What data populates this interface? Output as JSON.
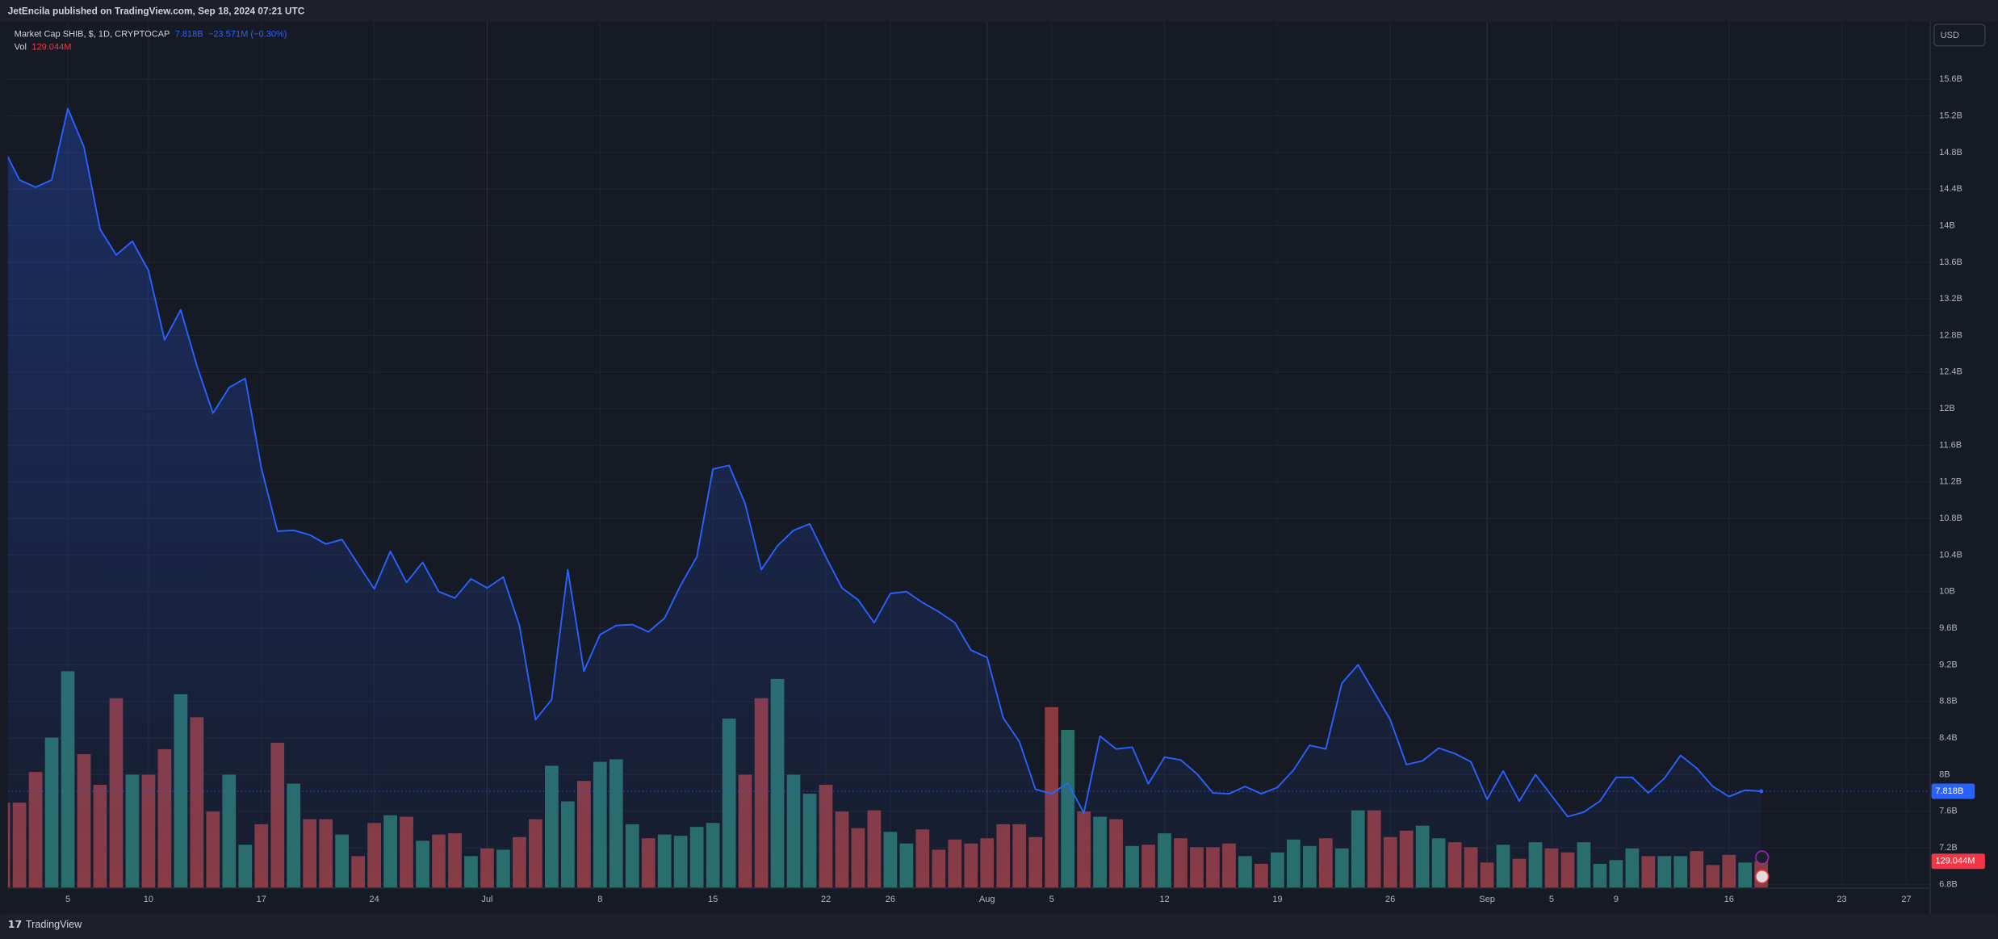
{
  "chart_data": {
    "type": "line",
    "header": "JetEncila published on TradingView.com, Sep 18, 2024 07:21 UTC",
    "currency": "USD",
    "footer": "TradingView",
    "categories": [
      "Jun 1",
      "Jun 2",
      "Jun 3",
      "Jun 4",
      "Jun 5",
      "Jun 6",
      "Jun 7",
      "Jun 8",
      "Jun 9",
      "Jun 10",
      "Jun 11",
      "Jun 12",
      "Jun 13",
      "Jun 14",
      "Jun 15",
      "Jun 16",
      "Jun 17",
      "Jun 18",
      "Jun 19",
      "Jun 20",
      "Jun 21",
      "Jun 22",
      "Jun 23",
      "Jun 24",
      "Jun 25",
      "Jun 26",
      "Jun 27",
      "Jun 28",
      "Jun 29",
      "Jun 30",
      "Jul 1",
      "Jul 2",
      "Jul 3",
      "Jul 4",
      "Jul 5",
      "Jul 6",
      "Jul 7",
      "Jul 8",
      "Jul 9",
      "Jul 10",
      "Jul 11",
      "Jul 12",
      "Jul 13",
      "Jul 14",
      "Jul 15",
      "Jul 16",
      "Jul 17",
      "Jul 18",
      "Jul 19",
      "Jul 20",
      "Jul 21",
      "Jul 22",
      "Jul 23",
      "Jul 24",
      "Jul 25",
      "Jul 26",
      "Jul 27",
      "Jul 28",
      "Jul 29",
      "Jul 30",
      "Jul 31",
      "Aug 1",
      "Aug 2",
      "Aug 3",
      "Aug 4",
      "Aug 5",
      "Aug 6",
      "Aug 7",
      "Aug 8",
      "Aug 9",
      "Aug 10",
      "Aug 11",
      "Aug 12",
      "Aug 13",
      "Aug 14",
      "Aug 15",
      "Aug 16",
      "Aug 17",
      "Aug 18",
      "Aug 19",
      "Aug 20",
      "Aug 21",
      "Aug 22",
      "Aug 23",
      "Aug 24",
      "Aug 25",
      "Aug 26",
      "Aug 27",
      "Aug 28",
      "Aug 29",
      "Aug 30",
      "Aug 31",
      "Sep 1",
      "Sep 2",
      "Sep 3",
      "Sep 4",
      "Sep 5",
      "Sep 6",
      "Sep 7",
      "Sep 8",
      "Sep 9",
      "Sep 10",
      "Sep 11",
      "Sep 12",
      "Sep 13",
      "Sep 14",
      "Sep 15",
      "Sep 16",
      "Sep 17",
      "Sep 18",
      "Sep 19",
      "Sep 20",
      "Sep 21",
      "Sep 22",
      "Sep 23",
      "Sep 24",
      "Sep 25",
      "Sep 26",
      "Sep 27"
    ],
    "series": [
      {
        "name": "Market Cap SHIB, $, 1D, CRYPTOCAP",
        "color": "#2962ff",
        "change_label": "−23.571M (−0.30%)",
        "values": [
          14.85,
          14.5,
          14.42,
          14.5,
          15.28,
          14.86,
          13.96,
          13.68,
          13.83,
          13.51,
          12.75,
          13.08,
          12.47,
          11.95,
          12.23,
          12.33,
          11.35,
          10.66,
          10.67,
          10.62,
          10.52,
          10.57,
          10.3,
          10.03,
          10.44,
          10.1,
          10.32,
          10.0,
          9.93,
          10.14,
          10.04,
          10.16,
          9.63,
          8.6,
          8.82,
          10.24,
          9.13,
          9.53,
          9.63,
          9.64,
          9.56,
          9.71,
          10.07,
          10.38,
          11.34,
          11.38,
          10.96,
          10.24,
          10.5,
          10.67,
          10.74,
          10.38,
          10.04,
          9.91,
          9.66,
          9.98,
          10.0,
          9.88,
          9.78,
          9.66,
          9.36,
          9.28,
          8.62,
          8.36,
          7.84,
          7.79,
          7.91,
          7.58,
          8.42,
          8.28,
          8.3,
          7.9,
          8.19,
          8.16,
          8.01,
          7.8,
          7.79,
          7.87,
          7.79,
          7.86,
          8.05,
          8.32,
          8.28,
          9.0,
          9.2,
          8.9,
          8.6,
          8.11,
          8.15,
          8.29,
          8.23,
          8.14,
          7.73,
          8.04,
          7.71,
          8.0,
          7.77,
          7.54,
          7.59,
          7.71,
          7.97,
          7.97,
          7.8,
          7.96,
          8.21,
          8.07,
          7.87,
          7.76,
          7.83,
          7.818,
          null,
          null,
          null,
          null,
          null,
          null,
          null,
          null,
          null
        ],
        "value_labels": [
          null,
          null,
          null,
          null,
          null,
          null,
          null,
          null,
          null,
          null,
          null,
          null,
          null,
          null,
          null,
          null,
          null,
          null,
          null,
          null,
          null,
          null,
          null,
          null,
          null,
          null,
          null,
          null,
          null,
          null,
          null,
          null,
          null,
          null,
          null,
          null,
          null,
          null,
          null,
          null,
          null,
          null,
          null,
          null,
          null,
          null,
          null,
          null,
          null,
          null,
          null,
          null,
          null,
          null,
          null,
          null,
          null,
          null,
          null,
          null,
          null,
          null,
          null,
          null,
          null,
          null,
          null,
          null,
          null,
          null,
          null,
          null,
          null,
          null,
          null,
          null,
          null,
          null,
          null,
          null,
          null,
          null,
          null,
          null,
          null,
          null,
          null,
          null,
          null,
          null,
          null,
          null,
          null,
          null,
          null,
          null,
          null,
          null,
          null,
          null,
          null,
          null,
          null,
          null,
          null,
          null,
          null,
          null,
          null,
          "7.818B",
          null,
          null,
          null,
          null,
          null,
          null,
          null,
          null,
          null
        ]
      },
      {
        "name": "Vol",
        "axis": "y2",
        "up_color": "#2a6e66",
        "down_color": "#8b3a3e",
        "label_color": "#f23645",
        "values": [
          412,
          412,
          560,
          726,
          1046,
          646,
          498,
          916,
          547,
          547,
          670,
          935,
          824,
          369,
          547,
          209,
          308,
          701,
          504,
          332,
          332,
          258,
          154,
          314,
          351,
          344,
          228,
          258,
          264,
          154,
          191,
          185,
          246,
          332,
          590,
          418,
          517,
          609,
          621,
          308,
          240,
          258,
          252,
          295,
          314,
          818,
          547,
          916,
          1009,
          547,
          455,
          498,
          369,
          289,
          375,
          271,
          215,
          283,
          185,
          234,
          215,
          240,
          308,
          308,
          246,
          873,
          763,
          369,
          344,
          332,
          203,
          209,
          264,
          240,
          197,
          197,
          215,
          154,
          117,
          172,
          234,
          203,
          240,
          191,
          375,
          375,
          246,
          277,
          301,
          240,
          221,
          197,
          123,
          209,
          141,
          221,
          191,
          172,
          221,
          117,
          135,
          191,
          154,
          154,
          154,
          178,
          111,
          160,
          123,
          129.044,
          null,
          null,
          null,
          null,
          null,
          null,
          null,
          null,
          null
        ],
        "value_labels": [
          null,
          null,
          null,
          null,
          null,
          null,
          null,
          null,
          null,
          null,
          null,
          null,
          null,
          null,
          null,
          null,
          null,
          null,
          null,
          null,
          null,
          null,
          null,
          null,
          null,
          null,
          null,
          null,
          null,
          null,
          null,
          null,
          null,
          null,
          null,
          null,
          null,
          null,
          null,
          null,
          null,
          null,
          null,
          null,
          null,
          null,
          null,
          null,
          null,
          null,
          null,
          null,
          null,
          null,
          null,
          null,
          null,
          null,
          null,
          null,
          null,
          null,
          null,
          null,
          null,
          null,
          null,
          null,
          null,
          null,
          null,
          null,
          null,
          null,
          null,
          null,
          null,
          null,
          null,
          null,
          null,
          null,
          null,
          null,
          null,
          null,
          null,
          null,
          null,
          null,
          null,
          null,
          null,
          null,
          null,
          null,
          null,
          null,
          null,
          null,
          null,
          null,
          null,
          null,
          null,
          null,
          null,
          null,
          null,
          "129.044M",
          null,
          null,
          null,
          null,
          null,
          null,
          null,
          null,
          null
        ]
      }
    ],
    "ylim": [
      6.76,
      16.23
    ],
    "yticks": [
      {
        "value": 15.6,
        "label": "15.6B"
      },
      {
        "value": 15.2,
        "label": "15.2B"
      },
      {
        "value": 14.8,
        "label": "14.8B"
      },
      {
        "value": 14.4,
        "label": "14.4B"
      },
      {
        "value": 14,
        "label": "14B"
      },
      {
        "value": 13.6,
        "label": "13.6B"
      },
      {
        "value": 13.2,
        "label": "13.2B"
      },
      {
        "value": 12.8,
        "label": "12.8B"
      },
      {
        "value": 12.4,
        "label": "12.4B"
      },
      {
        "value": 12,
        "label": "12B"
      },
      {
        "value": 11.6,
        "label": "11.6B"
      },
      {
        "value": 11.2,
        "label": "11.2B"
      },
      {
        "value": 10.8,
        "label": "10.8B"
      },
      {
        "value": 10.4,
        "label": "10.4B"
      },
      {
        "value": 10,
        "label": "10B"
      },
      {
        "value": 9.6,
        "label": "9.6B"
      },
      {
        "value": 9.2,
        "label": "9.2B"
      },
      {
        "value": 8.8,
        "label": "8.8B"
      },
      {
        "value": 8.4,
        "label": "8.4B"
      },
      {
        "value": 8,
        "label": "8B"
      },
      {
        "value": 7.6,
        "label": "7.6B"
      },
      {
        "value": 7.2,
        "label": "7.2B"
      },
      {
        "value": 6.8,
        "label": "6.8B"
      }
    ],
    "y2lim": [
      0,
      4180
    ],
    "xticks": [
      {
        "value": "Jun 5",
        "label": "5"
      },
      {
        "value": "Jun 10",
        "label": "10"
      },
      {
        "value": "Jun 17",
        "label": "17"
      },
      {
        "value": "Jun 24",
        "label": "24"
      },
      {
        "value": "Jul 1",
        "label": "Jul"
      },
      {
        "value": "Jul 8",
        "label": "8"
      },
      {
        "value": "Jul 15",
        "label": "15"
      },
      {
        "value": "Jul 22",
        "label": "22"
      },
      {
        "value": "Jul 26",
        "label": "26"
      },
      {
        "value": "Aug 1",
        "label": "Aug"
      },
      {
        "value": "Aug 5",
        "label": "5"
      },
      {
        "value": "Aug 12",
        "label": "12"
      },
      {
        "value": "Aug 19",
        "label": "19"
      },
      {
        "value": "Aug 26",
        "label": "26"
      },
      {
        "value": "Sep 1",
        "label": "Sep"
      },
      {
        "value": "Sep 5",
        "label": "5"
      },
      {
        "value": "Sep 9",
        "label": "9"
      },
      {
        "value": "Sep 16",
        "label": "16"
      },
      {
        "value": "Sep 23",
        "label": "23"
      },
      {
        "value": "Sep 27",
        "label": "27"
      }
    ],
    "grid": true
  }
}
